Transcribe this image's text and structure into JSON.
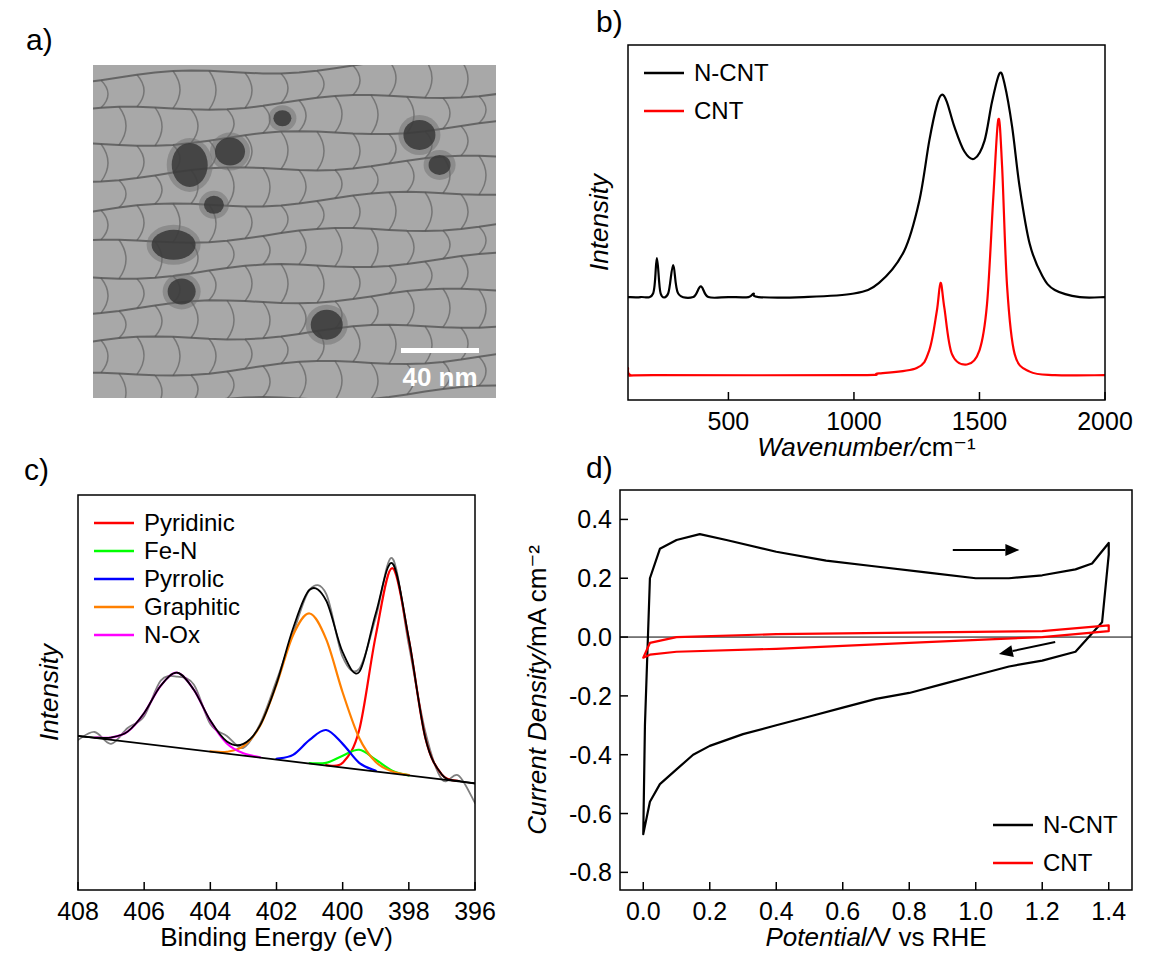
{
  "chart_data": [
    {
      "type": "image",
      "panel": "a)",
      "annotations": [
        "40 nm"
      ]
    },
    {
      "type": "line",
      "panel": "b)",
      "x_label": "Wavenumber/cm⁻¹",
      "y_label": "Intensity",
      "xlim": [
        100,
        2000
      ],
      "xticks": [
        500,
        1000,
        1500,
        2000
      ],
      "ylim": [
        0,
        1
      ],
      "tick_labels": "x",
      "grid": false,
      "legend": "upper left",
      "series": [
        {
          "name": "N-CNT",
          "color": "#000000",
          "x": [
            100,
            150,
            200,
            215,
            230,
            260,
            280,
            300,
            360,
            390,
            420,
            500,
            580,
            600,
            620,
            800,
            1000,
            1100,
            1200,
            1260,
            1300,
            1330,
            1350,
            1370,
            1400,
            1440,
            1480,
            1520,
            1550,
            1580,
            1600,
            1630,
            1660,
            1700,
            1750,
            1800,
            1900,
            2000
          ],
          "values": [
            0.29,
            0.29,
            0.3,
            0.4,
            0.3,
            0.3,
            0.38,
            0.3,
            0.29,
            0.32,
            0.29,
            0.29,
            0.29,
            0.3,
            0.29,
            0.29,
            0.3,
            0.33,
            0.42,
            0.56,
            0.73,
            0.83,
            0.86,
            0.84,
            0.77,
            0.7,
            0.68,
            0.73,
            0.84,
            0.92,
            0.89,
            0.77,
            0.6,
            0.44,
            0.35,
            0.31,
            0.29,
            0.29
          ]
        },
        {
          "name": "CNT",
          "color": "#ff0000",
          "x": [
            100,
            110,
            200,
            1000,
            1100,
            1250,
            1300,
            1330,
            1345,
            1360,
            1390,
            1450,
            1500,
            1530,
            1555,
            1575,
            1590,
            1610,
            1640,
            1700,
            1800,
            2000
          ],
          "values": [
            0.09,
            0.07,
            0.07,
            0.07,
            0.075,
            0.09,
            0.14,
            0.25,
            0.33,
            0.26,
            0.13,
            0.1,
            0.14,
            0.27,
            0.57,
            0.79,
            0.66,
            0.32,
            0.13,
            0.08,
            0.07,
            0.07
          ]
        }
      ]
    },
    {
      "type": "line",
      "panel": "c)",
      "x_label": "Binding Energy (eV)",
      "y_label": "Intensity",
      "xlim": [
        408,
        396
      ],
      "xticks": [
        408,
        406,
        404,
        402,
        400,
        398,
        396
      ],
      "ylim": [
        0,
        1
      ],
      "tick_labels": "x",
      "grid": false,
      "legend": "upper left",
      "series": [
        {
          "color": "#808080",
          "x": [
            396,
            396.5,
            397,
            397.5,
            398,
            398.5,
            399,
            399.5,
            400,
            400.5,
            401,
            401.5,
            402,
            402.5,
            403,
            403.5,
            404,
            404.5,
            405,
            405.5,
            406,
            406.5,
            407,
            407.5,
            408
          ],
          "values": [
            0.22,
            0.29,
            0.28,
            0.4,
            0.62,
            0.84,
            0.69,
            0.56,
            0.59,
            0.75,
            0.76,
            0.65,
            0.53,
            0.42,
            0.36,
            0.39,
            0.42,
            0.52,
            0.54,
            0.53,
            0.44,
            0.41,
            0.37,
            0.4,
            0.38
          ]
        },
        {
          "name": "Pyridinic",
          "color": "#ff0000",
          "x": [
            396.5,
            397,
            397.5,
            398,
            398.5,
            399,
            399.5,
            400,
            400.5
          ],
          "values": [
            0.276,
            0.292,
            0.385,
            0.634,
            0.815,
            0.644,
            0.405,
            0.322,
            0.316
          ]
        },
        {
          "name": "Fe-N",
          "color": "#00ff00",
          "x": [
            398,
            398.5,
            399,
            399.5,
            400,
            400.5,
            401
          ],
          "values": [
            0.29,
            0.302,
            0.33,
            0.355,
            0.34,
            0.322,
            0.321
          ]
        },
        {
          "name": "Pyrrolic",
          "color": "#0000ff",
          "x": [
            399,
            399.5,
            400,
            400.5,
            401,
            401.5,
            402
          ],
          "values": [
            0.302,
            0.322,
            0.37,
            0.405,
            0.38,
            0.342,
            0.332
          ]
        },
        {
          "name": "Graphitic",
          "color": "#ff8000",
          "x": [
            398,
            398.5,
            399,
            399.5,
            400,
            400.5,
            401,
            401.5,
            402,
            402.5,
            403,
            403.5,
            404
          ],
          "values": [
            0.291,
            0.3,
            0.324,
            0.385,
            0.5,
            0.635,
            0.7,
            0.645,
            0.52,
            0.415,
            0.364,
            0.35,
            0.351
          ]
        },
        {
          "name": "N-Ox",
          "color": "#ff00ff",
          "x": [
            402.5,
            403,
            403.5,
            404,
            404.5,
            405,
            405.5,
            406,
            406.5,
            407,
            407.5
          ],
          "values": [
            0.336,
            0.346,
            0.371,
            0.428,
            0.507,
            0.55,
            0.517,
            0.448,
            0.401,
            0.386,
            0.386
          ]
        },
        {
          "color": "#000000",
          "x": [
            396,
            396.5,
            397,
            397.5,
            398,
            398.5,
            399,
            399.5,
            400,
            400.5,
            401,
            401.5,
            402,
            402.5,
            403,
            403.5,
            404,
            404.5,
            405,
            405.5,
            406,
            406.5,
            407,
            407.5,
            408
          ],
          "values": [
            0.27,
            0.276,
            0.292,
            0.385,
            0.636,
            0.827,
            0.7,
            0.552,
            0.602,
            0.733,
            0.76,
            0.662,
            0.522,
            0.416,
            0.37,
            0.376,
            0.429,
            0.507,
            0.55,
            0.517,
            0.448,
            0.401,
            0.386,
            0.386,
            0.39
          ]
        },
        {
          "color": "#000000",
          "x": [
            396,
            408
          ],
          "values": [
            0.27,
            0.39
          ]
        }
      ]
    },
    {
      "type": "line",
      "panel": "d)",
      "x_label": "Potential/V vs RHE",
      "y_label": "Current Density/mA cm⁻²",
      "xlim": [
        -0.07,
        1.47
      ],
      "xticks": [
        {
          "value": 0,
          "label": "0.0"
        },
        0.2,
        0.4,
        0.6,
        0.8,
        {
          "value": 1,
          "label": "1.0"
        },
        1.2,
        1.4
      ],
      "ylim": [
        -0.86,
        0.5
      ],
      "yticks": [
        -0.8,
        -0.6,
        -0.4,
        -0.2,
        {
          "value": 0,
          "label": "0.0"
        },
        0.2,
        0.4
      ],
      "grid": false,
      "legend": "lower right",
      "series": [
        {
          "name": "N-CNT",
          "color": "#000000",
          "x": [
            0,
            0.005,
            0.02,
            0.05,
            0.1,
            0.17,
            0.25,
            0.4,
            0.55,
            0.7,
            0.85,
            1.0,
            1.1,
            1.2,
            1.3,
            1.35,
            1.4,
            1.4,
            1.38,
            1.3,
            1.2,
            1.1,
            1.0,
            0.9,
            0.8,
            0.7,
            0.6,
            0.5,
            0.4,
            0.3,
            0.2,
            0.15,
            0.1,
            0.05,
            0.02,
            0
          ],
          "values": [
            -0.67,
            -0.3,
            0.2,
            0.3,
            0.33,
            0.35,
            0.33,
            0.29,
            0.26,
            0.24,
            0.22,
            0.2,
            0.2,
            0.21,
            0.23,
            0.25,
            0.32,
            0.28,
            0.05,
            -0.05,
            -0.08,
            -0.1,
            -0.13,
            -0.16,
            -0.19,
            -0.21,
            -0.24,
            -0.27,
            -0.3,
            -0.33,
            -0.37,
            -0.4,
            -0.45,
            -0.5,
            -0.56,
            -0.67
          ]
        },
        {
          "name": "CNT",
          "color": "#ff0000",
          "x": [
            0,
            0.02,
            0.1,
            0.4,
            0.8,
            1.2,
            1.4,
            1.4,
            1.2,
            0.8,
            0.4,
            0.1,
            0.02,
            0
          ],
          "values": [
            -0.07,
            -0.02,
            0,
            0.01,
            0.015,
            0.02,
            0.04,
            0.02,
            0,
            -0.02,
            -0.04,
            -0.05,
            -0.06,
            -0.07
          ]
        }
      ]
    }
  ]
}
